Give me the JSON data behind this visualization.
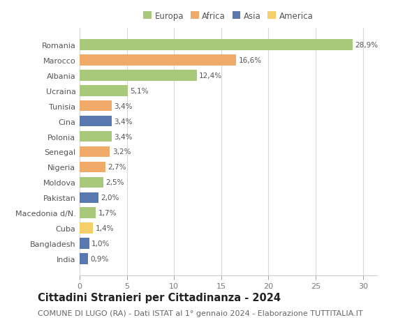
{
  "categories": [
    "Romania",
    "Marocco",
    "Albania",
    "Ucraina",
    "Tunisia",
    "Cina",
    "Polonia",
    "Senegal",
    "Nigeria",
    "Moldova",
    "Pakistan",
    "Macedonia d/N.",
    "Cuba",
    "Bangladesh",
    "India"
  ],
  "values": [
    28.9,
    16.6,
    12.4,
    5.1,
    3.4,
    3.4,
    3.4,
    3.2,
    2.7,
    2.5,
    2.0,
    1.7,
    1.4,
    1.0,
    0.9
  ],
  "labels": [
    "28,9%",
    "16,6%",
    "12,4%",
    "5,1%",
    "3,4%",
    "3,4%",
    "3,4%",
    "3,2%",
    "2,7%",
    "2,5%",
    "2,0%",
    "1,7%",
    "1,4%",
    "1,0%",
    "0,9%"
  ],
  "continents": [
    "Europa",
    "Africa",
    "Europa",
    "Europa",
    "Africa",
    "Asia",
    "Europa",
    "Africa",
    "Africa",
    "Europa",
    "Asia",
    "Europa",
    "America",
    "Asia",
    "Asia"
  ],
  "continent_colors": {
    "Europa": "#a8c87a",
    "Africa": "#f0aa6a",
    "Asia": "#5a78b0",
    "America": "#f5d06a"
  },
  "legend_order": [
    "Europa",
    "Africa",
    "Asia",
    "America"
  ],
  "title": "Cittadini Stranieri per Cittadinanza - 2024",
  "subtitle": "COMUNE DI LUGO (RA) - Dati ISTAT al 1° gennaio 2024 - Elaborazione TUTTITALIA.IT",
  "xlim": [
    0,
    31.5
  ],
  "xticks": [
    0,
    5,
    10,
    15,
    20,
    25,
    30
  ],
  "background_color": "#ffffff",
  "grid_color": "#d8d8d8",
  "bar_height": 0.7,
  "title_fontsize": 10.5,
  "subtitle_fontsize": 8,
  "label_fontsize": 7.5,
  "tick_fontsize": 8,
  "legend_fontsize": 8.5
}
